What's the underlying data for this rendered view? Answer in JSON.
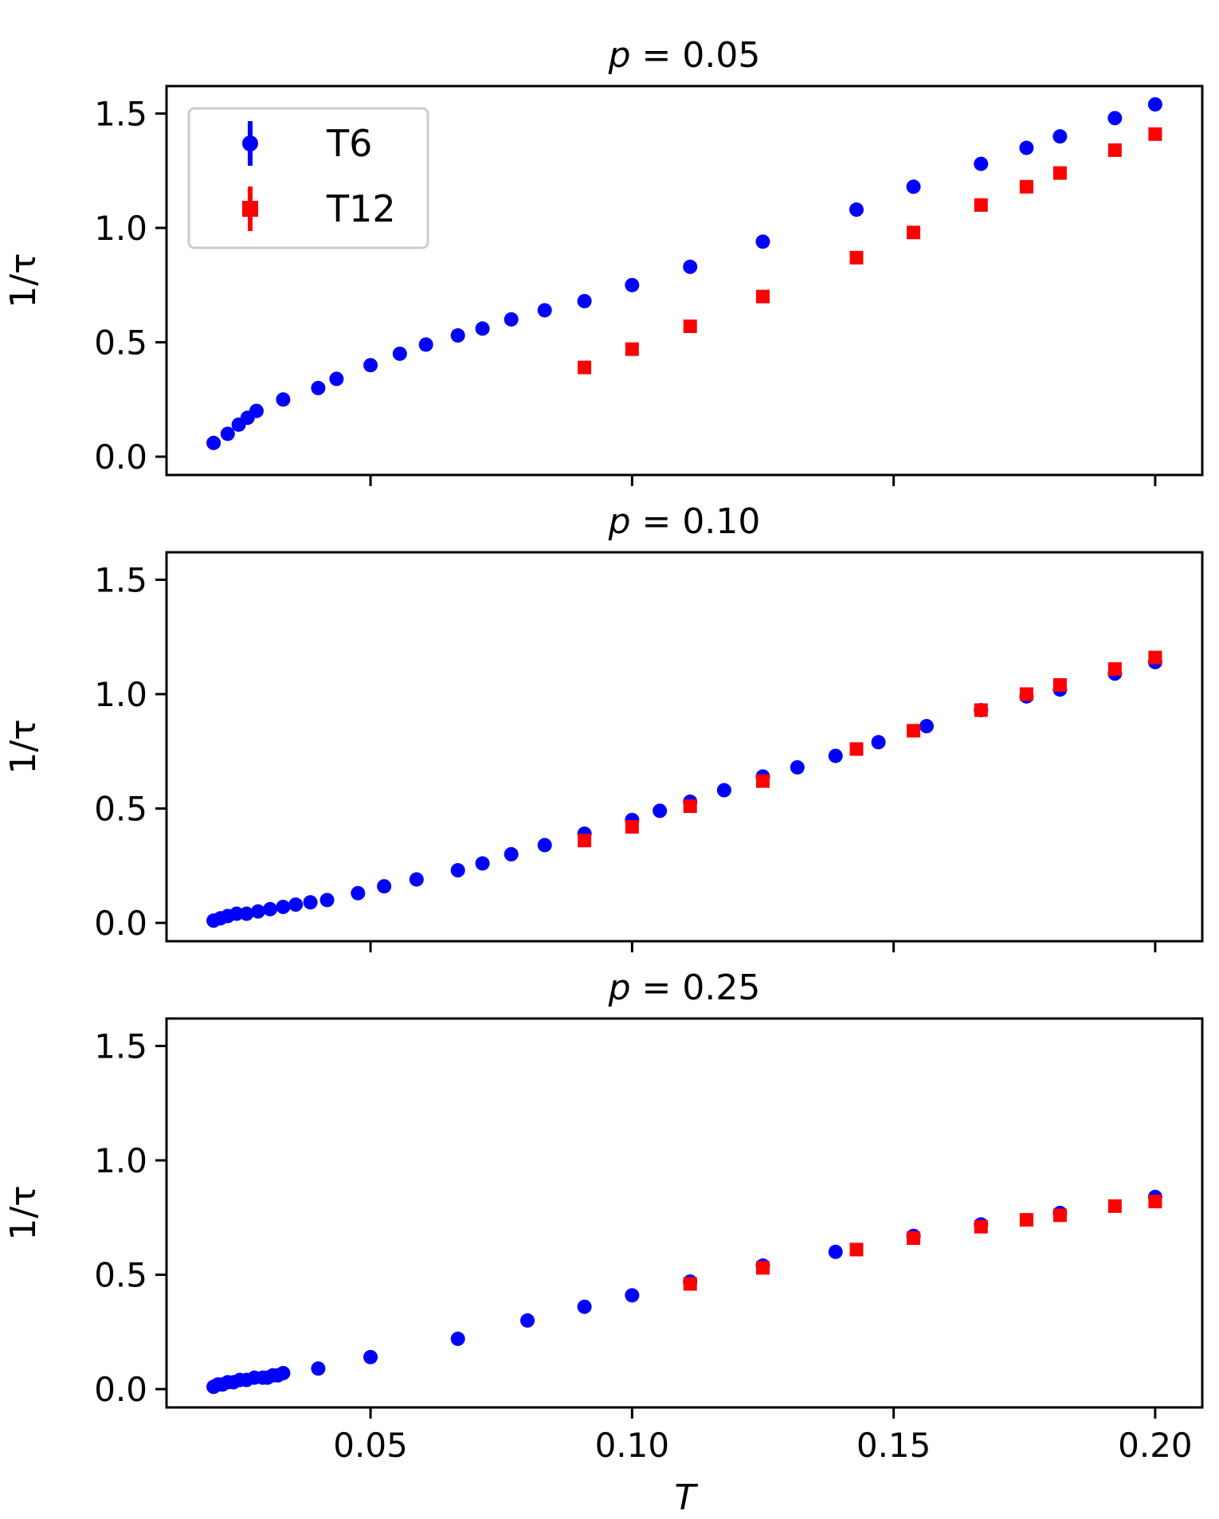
{
  "figure": {
    "xlabel": "T"
  },
  "chart_data": [
    {
      "type": "scatter",
      "title": "p = 0.05",
      "title_p": "p",
      "title_value": "= 0.05",
      "xlabel": "T",
      "ylabel": "1/τ",
      "xlim": [
        0.011,
        0.209
      ],
      "ylim": [
        -0.08,
        1.62
      ],
      "xticks": [
        0.05,
        0.1,
        0.15,
        0.2
      ],
      "xtick_labels": [
        "0.05",
        "0.10",
        "0.15",
        "0.20"
      ],
      "yticks": [
        0.0,
        0.5,
        1.0,
        1.5
      ],
      "ytick_labels": [
        "0.0",
        "0.5",
        "1.0",
        "1.5"
      ],
      "show_xtick_labels": false,
      "legend": {
        "position": "top-left",
        "entries": [
          "T6",
          "T12"
        ]
      },
      "series": [
        {
          "name": "T6",
          "marker": "circle",
          "color": "#0000ff",
          "x": [
            0.02,
            0.0227,
            0.0248,
            0.0265,
            0.0282,
            0.0333,
            0.04,
            0.0435,
            0.05,
            0.0556,
            0.0606,
            0.0667,
            0.0714,
            0.0769,
            0.0833,
            0.0909,
            0.1,
            0.1111,
            0.125,
            0.1429,
            0.1538,
            0.1667,
            0.1754,
            0.1818,
            0.1923,
            0.2
          ],
          "y": [
            0.06,
            0.1,
            0.14,
            0.17,
            0.2,
            0.25,
            0.3,
            0.34,
            0.4,
            0.45,
            0.49,
            0.53,
            0.56,
            0.6,
            0.64,
            0.68,
            0.75,
            0.83,
            0.94,
            1.08,
            1.18,
            1.28,
            1.35,
            1.4,
            1.48,
            1.54
          ]
        },
        {
          "name": "T12",
          "marker": "square",
          "color": "#ff0000",
          "x": [
            0.0909,
            0.1,
            0.1111,
            0.125,
            0.1429,
            0.1538,
            0.1667,
            0.1754,
            0.1818,
            0.1923,
            0.2
          ],
          "y": [
            0.39,
            0.47,
            0.57,
            0.7,
            0.87,
            0.98,
            1.1,
            1.18,
            1.24,
            1.34,
            1.41
          ]
        }
      ]
    },
    {
      "type": "scatter",
      "title": "p = 0.10",
      "title_p": "p",
      "title_value": "= 0.10",
      "xlabel": "T",
      "ylabel": "1/τ",
      "xlim": [
        0.011,
        0.209
      ],
      "ylim": [
        -0.08,
        1.62
      ],
      "xticks": [
        0.05,
        0.1,
        0.15,
        0.2
      ],
      "xtick_labels": [
        "0.05",
        "0.10",
        "0.15",
        "0.20"
      ],
      "yticks": [
        0.0,
        0.5,
        1.0,
        1.5
      ],
      "ytick_labels": [
        "0.0",
        "0.5",
        "1.0",
        "1.5"
      ],
      "show_xtick_labels": false,
      "legend": null,
      "series": [
        {
          "name": "T6",
          "marker": "circle",
          "color": "#0000ff",
          "x": [
            0.02,
            0.0213,
            0.0227,
            0.0244,
            0.0263,
            0.0285,
            0.0308,
            0.0333,
            0.0357,
            0.0385,
            0.0417,
            0.0476,
            0.0526,
            0.0588,
            0.0667,
            0.0714,
            0.0769,
            0.0833,
            0.0909,
            0.1,
            0.1053,
            0.1111,
            0.1176,
            0.125,
            0.1316,
            0.1389,
            0.1471,
            0.1563,
            0.1667,
            0.1754,
            0.1818,
            0.1923,
            0.2
          ],
          "y": [
            0.01,
            0.02,
            0.03,
            0.04,
            0.04,
            0.05,
            0.06,
            0.07,
            0.08,
            0.09,
            0.1,
            0.13,
            0.16,
            0.19,
            0.23,
            0.26,
            0.3,
            0.34,
            0.39,
            0.45,
            0.49,
            0.53,
            0.58,
            0.64,
            0.68,
            0.73,
            0.79,
            0.86,
            0.93,
            0.99,
            1.02,
            1.09,
            1.14
          ]
        },
        {
          "name": "T12",
          "marker": "square",
          "color": "#ff0000",
          "x": [
            0.0909,
            0.1,
            0.1111,
            0.125,
            0.1429,
            0.1538,
            0.1667,
            0.1754,
            0.1818,
            0.1923,
            0.2
          ],
          "y": [
            0.36,
            0.42,
            0.51,
            0.62,
            0.76,
            0.84,
            0.93,
            1.0,
            1.04,
            1.11,
            1.16
          ]
        }
      ]
    },
    {
      "type": "scatter",
      "title": "p = 0.25",
      "title_p": "p",
      "title_value": "= 0.25",
      "xlabel": "T",
      "ylabel": "1/τ",
      "xlim": [
        0.011,
        0.209
      ],
      "ylim": [
        -0.08,
        1.62
      ],
      "xticks": [
        0.05,
        0.1,
        0.15,
        0.2
      ],
      "xtick_labels": [
        "0.05",
        "0.10",
        "0.15",
        "0.20"
      ],
      "yticks": [
        0.0,
        0.5,
        1.0,
        1.5
      ],
      "ytick_labels": [
        "0.0",
        "0.5",
        "1.0",
        "1.5"
      ],
      "show_xtick_labels": true,
      "legend": null,
      "series": [
        {
          "name": "T6",
          "marker": "circle",
          "color": "#0000ff",
          "x": [
            0.02,
            0.0208,
            0.0217,
            0.0227,
            0.0238,
            0.025,
            0.0263,
            0.0278,
            0.0294,
            0.0303,
            0.0313,
            0.0323,
            0.0333,
            0.04,
            0.05,
            0.0667,
            0.08,
            0.0909,
            0.1,
            0.1111,
            0.125,
            0.1389,
            0.1538,
            0.1667,
            0.1818,
            0.2
          ],
          "y": [
            0.01,
            0.02,
            0.02,
            0.03,
            0.03,
            0.04,
            0.04,
            0.05,
            0.05,
            0.05,
            0.06,
            0.06,
            0.07,
            0.09,
            0.14,
            0.22,
            0.3,
            0.36,
            0.41,
            0.47,
            0.54,
            0.6,
            0.67,
            0.72,
            0.77,
            0.84
          ]
        },
        {
          "name": "T12",
          "marker": "square",
          "color": "#ff0000",
          "x": [
            0.1111,
            0.125,
            0.1429,
            0.1538,
            0.1667,
            0.1754,
            0.1818,
            0.1923,
            0.2
          ],
          "y": [
            0.46,
            0.53,
            0.61,
            0.66,
            0.71,
            0.74,
            0.76,
            0.8,
            0.82
          ]
        }
      ]
    }
  ]
}
